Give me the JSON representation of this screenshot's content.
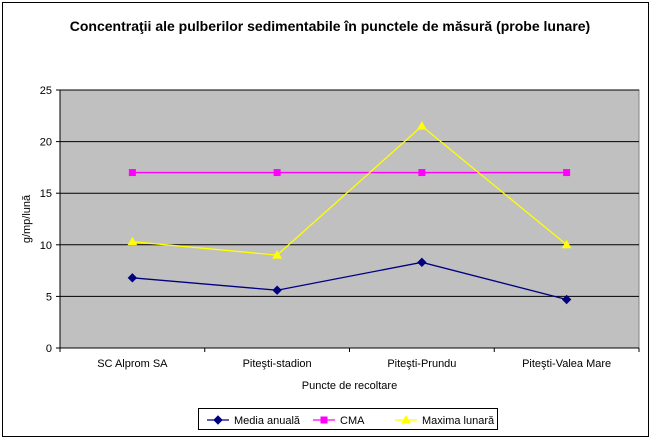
{
  "chart_data": {
    "type": "line",
    "title": "Concentraţii ale pulberilor sedimentabile în punctele de măsură (probe lunare)",
    "xlabel": "Puncte de recoltare",
    "ylabel": "g/mp/lună",
    "ylim": [
      0,
      25
    ],
    "yticks": [
      0,
      5,
      10,
      15,
      20,
      25
    ],
    "grid": true,
    "legend_position": "bottom",
    "categories": [
      "SC Alprom SA",
      "Piteşti-stadion",
      "Piteşti-Prundu",
      "Piteşti-Valea Mare"
    ],
    "series": [
      {
        "name": "Media anuală",
        "values": [
          6.8,
          5.6,
          8.3,
          4.7
        ],
        "color": "#000080",
        "marker": "diamond"
      },
      {
        "name": "CMA",
        "values": [
          17,
          17,
          17,
          17
        ],
        "color": "#ff00ff",
        "marker": "square"
      },
      {
        "name": "Maxima lunară",
        "values": [
          10.3,
          9.0,
          21.5,
          10.0
        ],
        "color": "#ffff00",
        "marker": "triangle"
      }
    ],
    "plot_background": "#c0c0c0"
  }
}
